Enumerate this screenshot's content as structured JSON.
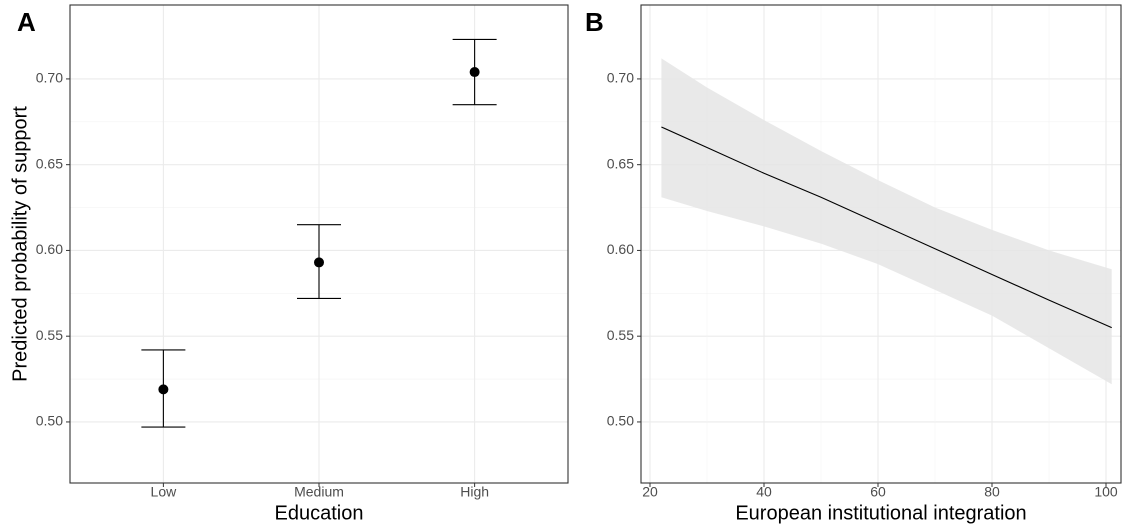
{
  "chart_data": [
    {
      "type": "errorbar",
      "panel_label": "A",
      "x_label": "Education",
      "y_label": "Predicted probability of support",
      "categories": [
        "Low",
        "Medium",
        "High"
      ],
      "values": [
        0.519,
        0.593,
        0.704
      ],
      "lower": [
        0.497,
        0.572,
        0.685
      ],
      "upper": [
        0.542,
        0.615,
        0.723
      ],
      "color": "#000000",
      "ylim": [
        0.4644,
        0.7431
      ],
      "yticks": [
        {
          "value": 0.5,
          "label": "0.50"
        },
        {
          "value": 0.55,
          "label": "0.55"
        },
        {
          "value": 0.6,
          "label": "0.60"
        },
        {
          "value": 0.65,
          "label": "0.65"
        },
        {
          "value": 0.7,
          "label": "0.70"
        }
      ],
      "grid": true
    },
    {
      "type": "line",
      "panel_label": "B",
      "x_label": "European institutional integration",
      "x": [
        22,
        30,
        40,
        50,
        60,
        70,
        80,
        90,
        101
      ],
      "values": [
        0.672,
        0.66,
        0.645,
        0.631,
        0.616,
        0.601,
        0.586,
        0.571,
        0.555
      ],
      "lower": [
        0.631,
        0.623,
        0.614,
        0.604,
        0.592,
        0.577,
        0.562,
        0.543,
        0.522
      ],
      "upper": [
        0.712,
        0.695,
        0.676,
        0.658,
        0.641,
        0.625,
        0.612,
        0.6,
        0.589
      ],
      "color": "#000000",
      "band_color": "#e5e5e5",
      "xlim": [
        18.42,
        102.63
      ],
      "xticks": [
        20,
        40,
        60,
        80,
        100
      ],
      "ylim": [
        0.4644,
        0.7431
      ],
      "yticks": [
        {
          "value": 0.5,
          "label": "0.50"
        },
        {
          "value": 0.55,
          "label": "0.55"
        },
        {
          "value": 0.6,
          "label": "0.60"
        },
        {
          "value": 0.65,
          "label": "0.65"
        },
        {
          "value": 0.7,
          "label": "0.70"
        }
      ],
      "grid": true
    }
  ]
}
